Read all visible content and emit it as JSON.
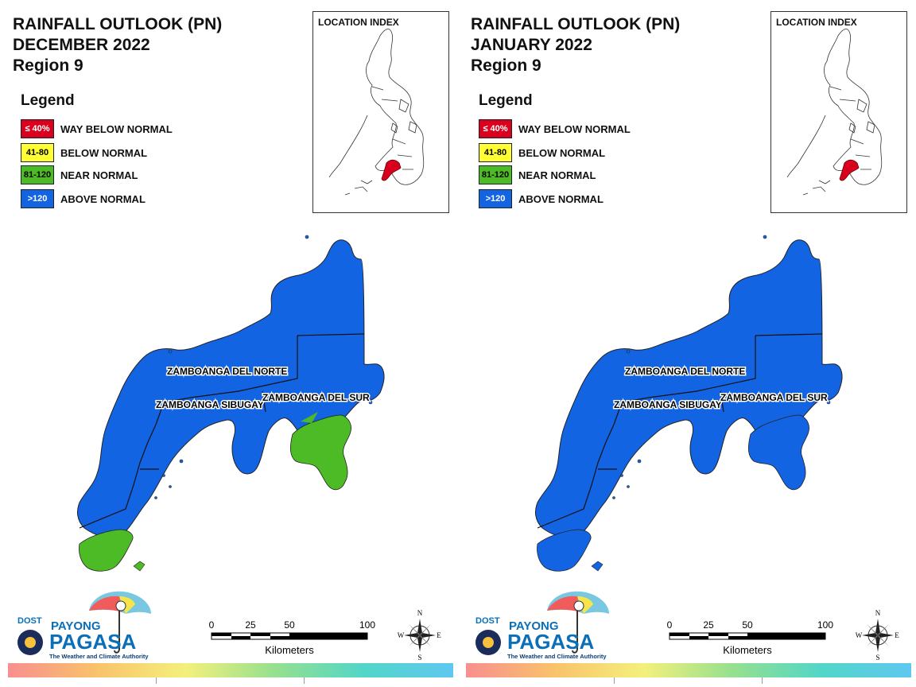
{
  "colors": {
    "way_below": "#d9001f",
    "below": "#ffff33",
    "near": "#4dbb26",
    "above": "#1364e3"
  },
  "legend": {
    "title": "Legend",
    "items": [
      {
        "range": "≤ 40%",
        "label": "WAY BELOW NORMAL",
        "color": "#d9001f",
        "text_color": "#ffffff"
      },
      {
        "range": "41-80",
        "label": "BELOW NORMAL",
        "color": "#ffff33",
        "text_color": "#000000"
      },
      {
        "range": "81-120",
        "label": "NEAR NORMAL",
        "color": "#4dbb26",
        "text_color": "#000000"
      },
      {
        "range": ">120",
        "label": "ABOVE NORMAL",
        "color": "#1364e3",
        "text_color": "#ffffff"
      }
    ]
  },
  "inset_title": "LOCATION INDEX",
  "provinces": {
    "norte": "ZAMBOANGA DEL NORTE",
    "sibugay": "ZAMBOANGA SIBUGAY",
    "sur": "ZAMBOANGA DEL SUR"
  },
  "scale": {
    "labels": [
      "0",
      "25",
      "50",
      "100"
    ],
    "unit": "Kilometers"
  },
  "compass": {
    "n": "N",
    "s": "S",
    "e": "E",
    "w": "W"
  },
  "logo": {
    "dost": "DOST",
    "payong": "PAYONG",
    "pagasa": "PAGASA",
    "tagline": "The Weather and Climate Authority"
  },
  "panels": [
    {
      "title_line1": "RAINFALL OUTLOOK (PN)",
      "title_line2": "DECEMBER 2022",
      "title_line3": "Region 9",
      "map_state": "December: mostly above normal; near normal over southeastern Zamboanga del Sur peninsula and southern tip of Zamboanga peninsula"
    },
    {
      "title_line1": "RAINFALL OUTLOOK (PN)",
      "title_line2": "JANUARY 2022",
      "title_line3": "Region 9",
      "map_state": "January: entire region above normal"
    }
  ]
}
